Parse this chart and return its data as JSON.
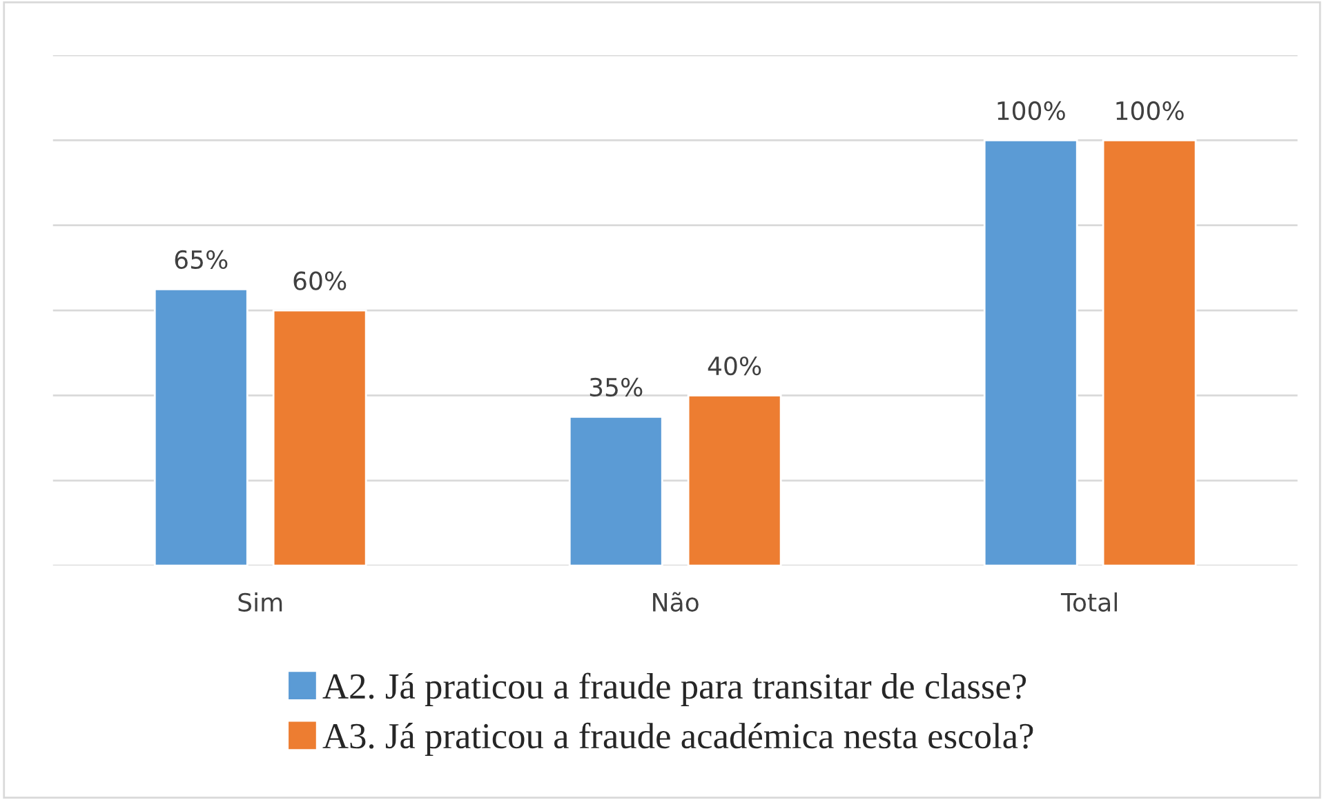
{
  "chart_data": {
    "type": "bar",
    "categories": [
      "Sim",
      "Não",
      "Total"
    ],
    "series": [
      {
        "name": "A2. Já praticou a fraude para transitar de classe?",
        "color": "#5b9bd5",
        "values": [
          65,
          35,
          100
        ],
        "value_labels": [
          "65%",
          "35%",
          "100%"
        ]
      },
      {
        "name": "A3. Já praticou a fraude académica nesta escola?",
        "color": "#ed7d31",
        "values": [
          60,
          40,
          100
        ],
        "value_labels": [
          "60%",
          "40%",
          "100%"
        ]
      }
    ],
    "grid": "y",
    "legend": "bottom",
    "tick_labels": "x"
  }
}
